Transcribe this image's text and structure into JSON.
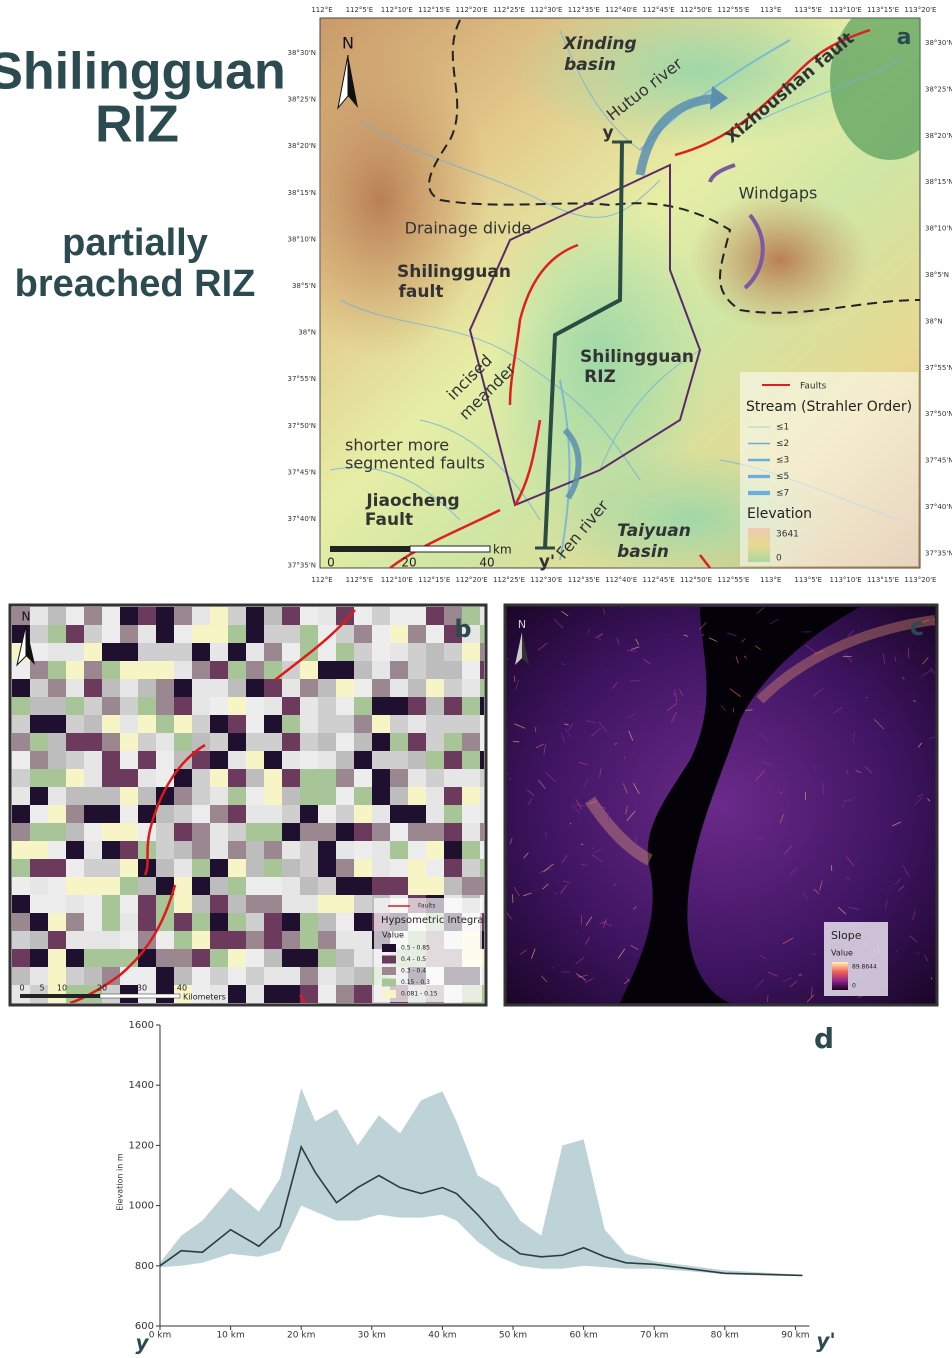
{
  "title": {
    "lines": [
      "Shilingguan",
      "RIZ"
    ]
  },
  "subtitle": {
    "lines": [
      "partially",
      "breached RIZ"
    ]
  },
  "panel_a": {
    "label": "a",
    "north": "N",
    "annotations": [
      "Xinding",
      "basin",
      "Hutuo river",
      "Xizhoushan fault",
      "y",
      "Windgaps",
      "Drainage divide",
      "Shilingguan",
      "fault",
      "incised",
      "meander",
      "Shilingguan",
      "RIZ",
      "shorter more",
      "segmented faults",
      "Jiaocheng",
      "Fault",
      "Fen river",
      "Taiyuan",
      "basin",
      "y'"
    ],
    "legend": {
      "faults": "Faults",
      "stream_title": "Stream (Strahler Order)",
      "stream_orders": [
        "≤1",
        "≤2",
        "≤3",
        "≤5",
        "≤7"
      ],
      "elevation_title": "Elevation",
      "elevation_max": "3641",
      "elevation_min": "0"
    },
    "scale": {
      "ticks": [
        "0",
        "20",
        "40"
      ],
      "unit": "km"
    },
    "lon_ticks": [
      "112°E",
      "112°5'E",
      "112°10'E",
      "112°15'E",
      "112°20'E",
      "112°25'E",
      "112°30'E",
      "112°35'E",
      "112°40'E",
      "112°45'E",
      "112°50'E",
      "112°55'E",
      "113°E",
      "113°5'E",
      "113°10'E",
      "113°15'E",
      "113°20'E"
    ],
    "lat_ticks": [
      "38°30'N",
      "38°25'N",
      "38°20'N",
      "38°15'N",
      "38°10'N",
      "38°5'N",
      "38°N",
      "37°55'N",
      "37°50'N",
      "37°45'N",
      "37°40'N",
      "37°35'N"
    ]
  },
  "panel_b": {
    "label": "b",
    "north": "N",
    "legend": {
      "faults": "Faults",
      "title": "Hypsometric Integral",
      "value": "Value",
      "classes": [
        {
          "label": "0.5 - 0.85",
          "color": "#1f1030"
        },
        {
          "label": "0.4 - 0.5",
          "color": "#6b3a5c"
        },
        {
          "label": "0.3 - 0.4",
          "color": "#9a8790"
        },
        {
          "label": "0.15 - 0.3",
          "color": "#a8c597"
        },
        {
          "label": "0.081 - 0.15",
          "color": "#f7f4c6"
        }
      ]
    },
    "scale": {
      "ticks": [
        "0",
        "5",
        "10",
        "20",
        "30",
        "40"
      ],
      "unit": "Kilometers"
    }
  },
  "panel_c": {
    "label": "c",
    "north": "N",
    "legend": {
      "title": "Slope",
      "value": "Value",
      "max": "89.8644",
      "min": "0"
    }
  },
  "chart_data": {
    "type": "area",
    "panel_label": "d",
    "ylabel": "Elevation in m",
    "x_start_label": "y",
    "x_end_label": "y'",
    "x": [
      0,
      3,
      6,
      10,
      14,
      17,
      20,
      22,
      25,
      28,
      31,
      34,
      37,
      40,
      42,
      45,
      48,
      51,
      54,
      57,
      60,
      63,
      66,
      70,
      75,
      80,
      85,
      91
    ],
    "values": [
      800,
      850,
      845,
      920,
      865,
      930,
      1195,
      1110,
      1010,
      1060,
      1100,
      1060,
      1040,
      1060,
      1040,
      970,
      890,
      840,
      830,
      835,
      860,
      830,
      810,
      805,
      790,
      775,
      772,
      768
    ],
    "upper": [
      810,
      900,
      950,
      1060,
      980,
      1090,
      1390,
      1280,
      1320,
      1200,
      1300,
      1240,
      1350,
      1380,
      1280,
      1100,
      1060,
      950,
      900,
      1200,
      1220,
      920,
      840,
      815,
      800,
      785,
      778,
      770
    ],
    "lower": [
      795,
      800,
      810,
      840,
      830,
      850,
      1000,
      980,
      950,
      950,
      970,
      960,
      960,
      970,
      950,
      880,
      830,
      800,
      790,
      790,
      800,
      795,
      790,
      790,
      782,
      772,
      768,
      766
    ],
    "color": "#2b3d3e",
    "band_color": "#b7ced3",
    "xlim": [
      0,
      92
    ],
    "ylim": [
      600,
      1600
    ],
    "yticks": [
      600,
      800,
      1000,
      1200,
      1400,
      1600
    ],
    "xticks": [
      {
        "value": 0,
        "label": "0 km"
      },
      {
        "value": 10,
        "label": "10 km"
      },
      {
        "value": 20,
        "label": "20 km"
      },
      {
        "value": 30,
        "label": "30 km"
      },
      {
        "value": 40,
        "label": "40 km"
      },
      {
        "value": 50,
        "label": "50 km"
      },
      {
        "value": 60,
        "label": "60 km"
      },
      {
        "value": 70,
        "label": "70 km"
      },
      {
        "value": 80,
        "label": "80 km"
      },
      {
        "value": 90,
        "label": "90 km"
      }
    ]
  }
}
